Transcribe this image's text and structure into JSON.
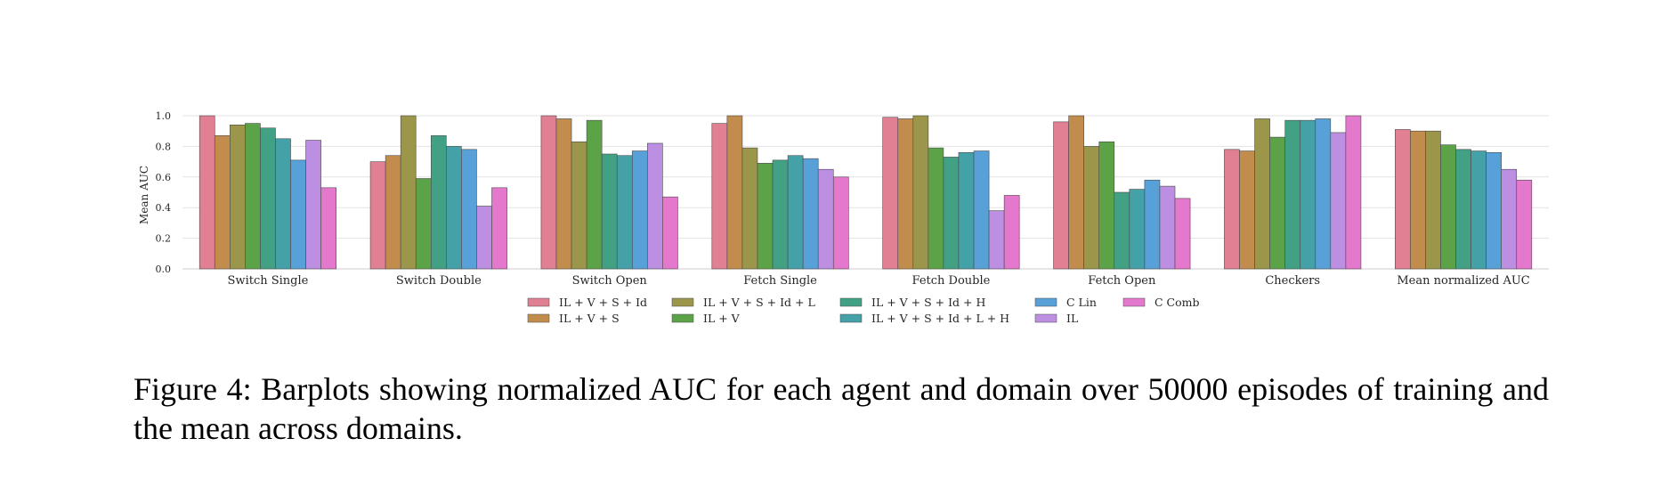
{
  "caption": "Figure 4: Barplots showing normalized AUC for each agent and domain over 50000 episodes of training and the mean across domains.",
  "chart_data": {
    "type": "bar",
    "ylabel": "Mean AUC",
    "ylim": [
      0,
      1.0
    ],
    "yticks": [
      0.0,
      0.2,
      0.4,
      0.6,
      0.8,
      1.0
    ],
    "ytick_labels": [
      "0.0",
      "0.2",
      "0.4",
      "0.6",
      "0.8",
      "1.0"
    ],
    "grid": true,
    "legend_position": "bottom-center",
    "categories": [
      "Switch Single",
      "Switch Double",
      "Switch Open",
      "Fetch Single",
      "Fetch Double",
      "Fetch Open",
      "Checkers",
      "Mean normalized AUC"
    ],
    "series": [
      {
        "name": "IL + V + S + Id",
        "color": "#e17f93",
        "values": [
          1.0,
          0.7,
          1.0,
          0.95,
          0.99,
          0.96,
          0.78,
          0.91
        ]
      },
      {
        "name": "IL + V + S",
        "color": "#c18c4c",
        "values": [
          0.87,
          0.74,
          0.98,
          1.0,
          0.98,
          1.0,
          0.77,
          0.9
        ]
      },
      {
        "name": "IL + V + S + Id + L",
        "color": "#9b964a",
        "values": [
          0.94,
          1.0,
          0.83,
          0.79,
          1.0,
          0.8,
          0.98,
          0.9
        ]
      },
      {
        "name": "IL + V",
        "color": "#5ba346",
        "values": [
          0.95,
          0.59,
          0.97,
          0.69,
          0.79,
          0.83,
          0.86,
          0.81
        ]
      },
      {
        "name": "IL + V + S + Id + H",
        "color": "#42a184",
        "values": [
          0.92,
          0.87,
          0.75,
          0.71,
          0.73,
          0.5,
          0.97,
          0.78
        ]
      },
      {
        "name": "IL + V + S + Id + L + H",
        "color": "#44a1a8",
        "values": [
          0.85,
          0.8,
          0.74,
          0.74,
          0.76,
          0.52,
          0.97,
          0.77
        ]
      },
      {
        "name": "C Lin",
        "color": "#58a0d8",
        "values": [
          0.71,
          0.78,
          0.77,
          0.72,
          0.77,
          0.58,
          0.98,
          0.76
        ]
      },
      {
        "name": "IL",
        "color": "#bc8fe2",
        "values": [
          0.84,
          0.41,
          0.82,
          0.65,
          0.38,
          0.54,
          0.89,
          0.65
        ]
      },
      {
        "name": "C Comb",
        "color": "#e378cd",
        "values": [
          0.53,
          0.53,
          0.47,
          0.6,
          0.48,
          0.46,
          1.0,
          0.58
        ]
      }
    ]
  }
}
